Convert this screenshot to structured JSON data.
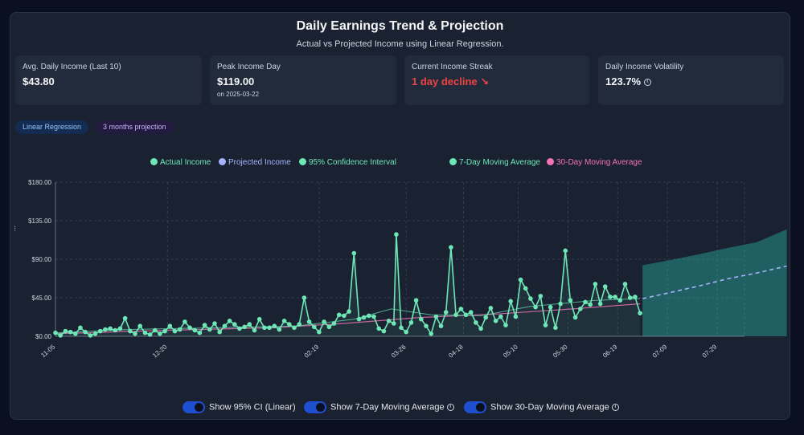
{
  "header": {
    "title": "Daily Earnings Trend & Projection",
    "subtitle": "Actual vs Projected Income using Linear Regression."
  },
  "stats": [
    {
      "label": "Avg. Daily Income (Last 10)",
      "value": "$43.80"
    },
    {
      "label": "Peak Income Day",
      "value": "$119.00",
      "sub": "on 2025-03-22"
    },
    {
      "label": "Current Income Streak",
      "value": "1 day decline ↘"
    },
    {
      "label": "Daily Income Volatility",
      "value": "123.7%",
      "icon": "info-icon"
    }
  ],
  "tags": {
    "method": "Linear Regression",
    "horizon": "3 months projection"
  },
  "legend": {
    "actual": "Actual Income",
    "projected": "Projected Income",
    "ci": "95% Confidence Interval",
    "ma7": "7-Day Moving Average",
    "ma30": "30-Day Moving Average"
  },
  "toggles": {
    "ci": "Show 95% CI (Linear)",
    "ma7": "Show 7-Day Moving Average",
    "ma30": "Show 30-Day Moving Average"
  },
  "colors": {
    "actual": "#6ee7b7",
    "projected": "#a5b4fc",
    "ci": "#2dd4bf",
    "ma7": "#6ee7b7",
    "ma30": "#f472b6",
    "decline": "#ef4444",
    "toggle": "#1e4fd1"
  },
  "chart_data": {
    "type": "line",
    "x_axis": {
      "type": "date",
      "range": [
        "2024-11-05",
        "2025-08-09"
      ]
    },
    "ylim": [
      0,
      180
    ],
    "yticks": [
      0,
      45,
      90,
      135,
      180
    ],
    "ytick_labels": [
      "$0.00",
      "$45.00",
      "$90.00",
      "$135.00",
      "$180.00"
    ],
    "xticks": [
      "2024-11-05",
      "2024-12-20",
      "2025-02-19",
      "2025-03-26",
      "2025-04-18",
      "2025-05-10",
      "2025-05-30",
      "2025-06-19",
      "2025-07-09",
      "2025-07-29"
    ],
    "xtick_labels": [
      "11-05",
      "12-20",
      "02-19",
      "03-26",
      "04-18",
      "05-10",
      "05-30",
      "06-19",
      "07-09",
      "07-29"
    ],
    "grid": true,
    "legend_position": "top",
    "series": [
      {
        "name": "Actual Income",
        "points": [
          [
            "2024-11-05",
            4
          ],
          [
            "2024-11-07",
            1
          ],
          [
            "2024-11-09",
            6
          ],
          [
            "2024-11-11",
            5
          ],
          [
            "2024-11-13",
            3
          ],
          [
            "2024-11-15",
            10
          ],
          [
            "2024-11-17",
            5
          ],
          [
            "2024-11-19",
            1
          ],
          [
            "2024-11-21",
            3
          ],
          [
            "2024-11-23",
            6
          ],
          [
            "2024-11-25",
            8
          ],
          [
            "2024-11-27",
            9
          ],
          [
            "2024-11-29",
            7
          ],
          [
            "2024-12-01",
            9
          ],
          [
            "2024-12-03",
            21
          ],
          [
            "2024-12-05",
            6
          ],
          [
            "2024-12-07",
            3
          ],
          [
            "2024-12-09",
            12
          ],
          [
            "2024-12-11",
            4
          ],
          [
            "2024-12-13",
            2
          ],
          [
            "2024-12-15",
            7
          ],
          [
            "2024-12-17",
            3
          ],
          [
            "2024-12-19",
            6
          ],
          [
            "2024-12-21",
            12
          ],
          [
            "2024-12-23",
            6
          ],
          [
            "2024-12-25",
            8
          ],
          [
            "2024-12-27",
            17
          ],
          [
            "2024-12-29",
            10
          ],
          [
            "2024-12-31",
            7
          ],
          [
            "2025-01-02",
            4
          ],
          [
            "2025-01-04",
            13
          ],
          [
            "2025-01-06",
            8
          ],
          [
            "2025-01-08",
            15
          ],
          [
            "2025-01-10",
            5
          ],
          [
            "2025-01-12",
            12
          ],
          [
            "2025-01-14",
            18
          ],
          [
            "2025-01-16",
            14
          ],
          [
            "2025-01-18",
            9
          ],
          [
            "2025-01-20",
            11
          ],
          [
            "2025-01-22",
            14
          ],
          [
            "2025-01-24",
            7
          ],
          [
            "2025-01-26",
            20
          ],
          [
            "2025-01-28",
            10
          ],
          [
            "2025-01-30",
            10
          ],
          [
            "2025-02-01",
            12
          ],
          [
            "2025-02-03",
            8
          ],
          [
            "2025-02-05",
            18
          ],
          [
            "2025-02-07",
            14
          ],
          [
            "2025-02-09",
            10
          ],
          [
            "2025-02-11",
            14
          ],
          [
            "2025-02-13",
            45
          ],
          [
            "2025-02-15",
            17
          ],
          [
            "2025-02-17",
            11
          ],
          [
            "2025-02-19",
            5
          ],
          [
            "2025-02-21",
            17
          ],
          [
            "2025-02-23",
            11
          ],
          [
            "2025-02-25",
            15
          ],
          [
            "2025-02-27",
            25
          ],
          [
            "2025-03-01",
            24
          ],
          [
            "2025-03-03",
            29
          ],
          [
            "2025-03-05",
            97
          ],
          [
            "2025-03-07",
            20
          ],
          [
            "2025-03-09",
            22
          ],
          [
            "2025-03-11",
            24
          ],
          [
            "2025-03-13",
            23
          ],
          [
            "2025-03-15",
            9
          ],
          [
            "2025-03-17",
            6
          ],
          [
            "2025-03-19",
            18
          ],
          [
            "2025-03-21",
            15
          ],
          [
            "2025-03-22",
            119
          ],
          [
            "2025-03-24",
            10
          ],
          [
            "2025-03-26",
            5
          ],
          [
            "2025-03-28",
            16
          ],
          [
            "2025-03-30",
            42
          ],
          [
            "2025-04-01",
            20
          ],
          [
            "2025-04-03",
            12
          ],
          [
            "2025-04-05",
            3
          ],
          [
            "2025-04-07",
            23
          ],
          [
            "2025-04-09",
            12
          ],
          [
            "2025-04-11",
            28
          ],
          [
            "2025-04-13",
            104
          ],
          [
            "2025-04-15",
            25
          ],
          [
            "2025-04-17",
            32
          ],
          [
            "2025-04-19",
            25
          ],
          [
            "2025-04-21",
            28
          ],
          [
            "2025-04-23",
            16
          ],
          [
            "2025-04-25",
            9
          ],
          [
            "2025-04-27",
            22
          ],
          [
            "2025-04-29",
            33
          ],
          [
            "2025-05-01",
            18
          ],
          [
            "2025-05-03",
            23
          ],
          [
            "2025-05-05",
            13
          ],
          [
            "2025-05-07",
            41
          ],
          [
            "2025-05-09",
            23
          ],
          [
            "2025-05-11",
            66
          ],
          [
            "2025-05-13",
            56
          ],
          [
            "2025-05-15",
            44
          ],
          [
            "2025-05-17",
            34
          ],
          [
            "2025-05-19",
            47
          ],
          [
            "2025-05-21",
            13
          ],
          [
            "2025-05-23",
            34
          ],
          [
            "2025-05-25",
            10
          ],
          [
            "2025-05-27",
            38
          ],
          [
            "2025-05-29",
            100
          ],
          [
            "2025-05-31",
            42
          ],
          [
            "2025-06-02",
            22
          ],
          [
            "2025-06-04",
            32
          ],
          [
            "2025-06-06",
            40
          ],
          [
            "2025-06-08",
            37
          ],
          [
            "2025-06-10",
            61
          ],
          [
            "2025-06-12",
            38
          ],
          [
            "2025-06-14",
            58
          ],
          [
            "2025-06-16",
            46
          ],
          [
            "2025-06-18",
            46
          ],
          [
            "2025-06-20",
            42
          ],
          [
            "2025-06-22",
            61
          ],
          [
            "2025-06-24",
            45
          ],
          [
            "2025-06-26",
            46
          ],
          [
            "2025-06-28",
            27
          ]
        ]
      },
      {
        "name": "Projected Income",
        "points": [
          [
            "2025-06-29",
            44
          ],
          [
            "2025-07-10",
            51
          ],
          [
            "2025-07-22",
            59
          ],
          [
            "2025-08-02",
            67
          ],
          [
            "2025-08-14",
            74
          ],
          [
            "2025-08-26",
            82
          ]
        ]
      },
      {
        "name": "95% Confidence Interval",
        "upper": [
          [
            "2025-06-29",
            83
          ],
          [
            "2025-07-10",
            89
          ],
          [
            "2025-07-22",
            96
          ],
          [
            "2025-08-02",
            103
          ],
          [
            "2025-08-14",
            110
          ],
          [
            "2025-08-26",
            125
          ]
        ],
        "lower": [
          [
            "2025-06-29",
            0
          ],
          [
            "2025-08-26",
            0
          ]
        ]
      },
      {
        "name": "7-Day Moving Average",
        "points": [
          [
            "2024-11-05",
            4
          ],
          [
            "2024-12-05",
            8
          ],
          [
            "2025-01-10",
            10
          ],
          [
            "2025-02-10",
            12
          ],
          [
            "2025-03-05",
            20
          ],
          [
            "2025-03-20",
            32
          ],
          [
            "2025-04-05",
            25
          ],
          [
            "2025-04-25",
            24
          ],
          [
            "2025-05-15",
            35
          ],
          [
            "2025-06-10",
            42
          ],
          [
            "2025-06-28",
            44
          ]
        ]
      },
      {
        "name": "30-Day Moving Average",
        "points": [
          [
            "2024-11-05",
            3
          ],
          [
            "2024-12-20",
            7
          ],
          [
            "2025-02-01",
            10
          ],
          [
            "2025-03-01",
            15
          ],
          [
            "2025-04-01",
            22
          ],
          [
            "2025-05-01",
            26
          ],
          [
            "2025-06-01",
            32
          ],
          [
            "2025-06-28",
            38
          ]
        ]
      }
    ]
  }
}
